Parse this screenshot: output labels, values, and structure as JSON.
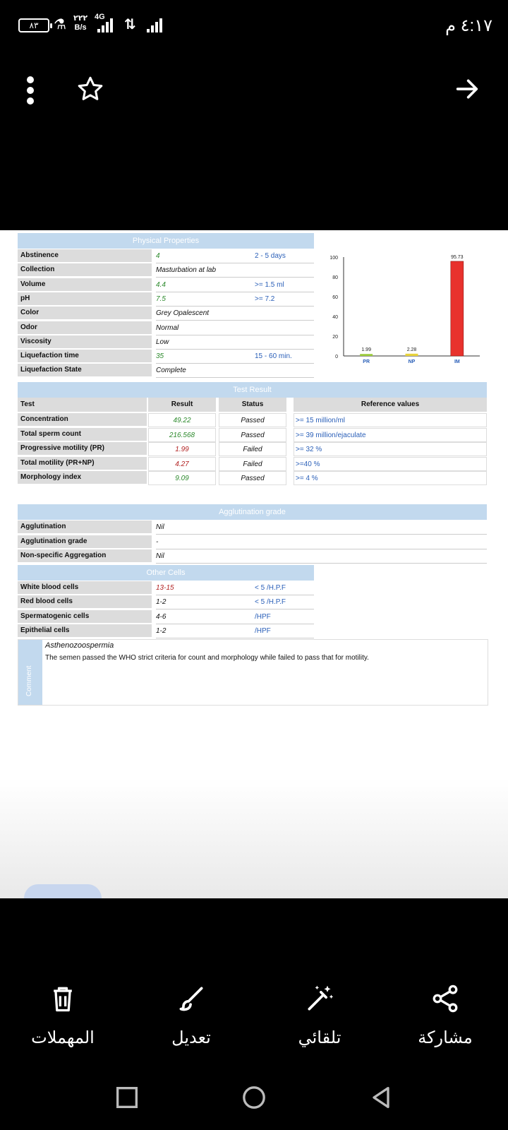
{
  "status_bar": {
    "battery": "٨٣",
    "speed_value": "٢٢٢",
    "speed_unit": "B/s",
    "network": "4G",
    "time": "٤:١٧ م"
  },
  "app_bar": {
    "more_icon": "more-vert-icon",
    "star_icon": "star-outline-icon",
    "forward_icon": "arrow-forward-icon"
  },
  "document": {
    "physical": {
      "header": "Physical Properties",
      "rows": [
        {
          "label": "Abstinence",
          "value": "4",
          "ref": "2 - 5 days"
        },
        {
          "label": "Collection",
          "value": "Masturbation at lab",
          "ref": ""
        },
        {
          "label": "Volume",
          "value": "4.4",
          "ref": ">= 1.5 ml"
        },
        {
          "label": "pH",
          "value": "7.5",
          "ref": ">= 7.2"
        },
        {
          "label": "Color",
          "value": "Grey Opalescent",
          "ref": ""
        },
        {
          "label": "Odor",
          "value": "Normal",
          "ref": ""
        },
        {
          "label": "Viscosity",
          "value": "Low",
          "ref": ""
        },
        {
          "label": "Liquefaction time",
          "value": "35",
          "ref": "15 - 60 min."
        },
        {
          "label": "Liquefaction State",
          "value": "Complete",
          "ref": ""
        }
      ]
    },
    "test_result": {
      "header": "Test Result",
      "columns": [
        "Test",
        "Result",
        "Status",
        "Reference values"
      ],
      "rows": [
        {
          "test": "Concentration",
          "result": "49.22",
          "status": "Passed",
          "ref": ">= 15 million/ml"
        },
        {
          "test": "Total sperm count",
          "result": "216.568",
          "status": "Passed",
          "ref": ">= 39 million/ejaculate"
        },
        {
          "test": "Progressive motility (PR)",
          "result": "1.99",
          "status": "Failed",
          "ref": ">= 32 %"
        },
        {
          "test": "Total motility (PR+NP)",
          "result": "4.27",
          "status": "Failed",
          "ref": ">=40 %"
        },
        {
          "test": "Morphology index",
          "result": "9.09",
          "status": "Passed",
          "ref": ">= 4 %"
        }
      ]
    },
    "agglutination": {
      "header": "Agglutination grade",
      "rows": [
        {
          "label": "Agglutination",
          "value": "Nil"
        },
        {
          "label": "Agglutination grade",
          "value": "-"
        },
        {
          "label": "Non-specific Aggregation",
          "value": "Nil"
        }
      ]
    },
    "other_cells": {
      "header": "Other Cells",
      "rows": [
        {
          "label": "White blood cells",
          "value": "13-15",
          "ref": "< 5 /H.P.F"
        },
        {
          "label": "Red blood cells",
          "value": "1-2",
          "ref": "< 5 /H.P.F"
        },
        {
          "label": "Spermatogenic cells",
          "value": "4-6",
          "ref": "/HPF"
        },
        {
          "label": "Epithelial cells",
          "value": "1-2",
          "ref": "/HPF"
        }
      ]
    },
    "comment": {
      "side_label": "Comment",
      "title": "Asthenozoospermia",
      "text": "The semen passed the WHO strict criteria for count and morphology while failed to pass that for motility."
    }
  },
  "chart_data": {
    "type": "bar",
    "categories": [
      "PR",
      "NP",
      "IM"
    ],
    "values": [
      1.99,
      2.28,
      95.73
    ],
    "value_labels": [
      "1.99",
      "2.28",
      "95.73"
    ],
    "y_ticks": [
      "0",
      "20",
      "40",
      "60",
      "80",
      "100"
    ],
    "ylim": [
      0,
      100
    ],
    "colors": [
      "#9ccc3c",
      "#e8d33a",
      "#e8322d"
    ]
  },
  "actions": [
    {
      "label": "المهملات",
      "icon": "trash-icon"
    },
    {
      "label": "تعديل",
      "icon": "brush-icon"
    },
    {
      "label": "تلقائي",
      "icon": "magic-wand-icon"
    },
    {
      "label": "مشاركة",
      "icon": "share-icon"
    }
  ],
  "nav": {
    "recent": "recent-apps-icon",
    "home": "home-icon",
    "back": "back-icon"
  }
}
